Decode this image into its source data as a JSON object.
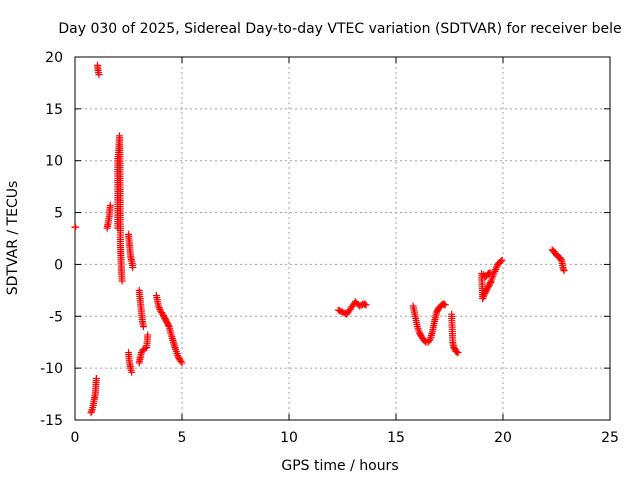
{
  "chart_data": {
    "type": "scatter",
    "title": "Day 030 of 2025, Sidereal Day-to-day VTEC variation (SDTVAR) for receiver bele",
    "xlabel": "GPS time / hours",
    "ylabel": "SDTVAR / TECUs",
    "xlim": [
      0,
      25
    ],
    "ylim": [
      -15,
      20
    ],
    "xticks": [
      0,
      5,
      10,
      15,
      20,
      25
    ],
    "yticks": [
      -15,
      -10,
      -5,
      0,
      5,
      10,
      15,
      20
    ],
    "grid": true,
    "marker": "+",
    "marker_color": "#ff0000",
    "series": [
      {
        "name": "SDTVAR",
        "segments": [
          [
            [
              0.0,
              3.6
            ],
            [
              0.03,
              3.6
            ]
          ],
          [
            [
              0.75,
              -14.3
            ],
            [
              0.8,
              -14.0
            ],
            [
              0.85,
              -13.6
            ],
            [
              0.9,
              -13.0
            ],
            [
              0.95,
              -12.5
            ],
            [
              1.0,
              -11.0
            ]
          ],
          [
            [
              1.05,
              19.2
            ],
            [
              1.08,
              18.7
            ],
            [
              1.12,
              18.3
            ]
          ],
          [
            [
              1.5,
              3.5
            ],
            [
              1.55,
              4.0
            ],
            [
              1.6,
              4.6
            ],
            [
              1.65,
              5.7
            ]
          ],
          [
            [
              2.0,
              3.5
            ],
            [
              2.0,
              10.2
            ],
            [
              2.03,
              10.8
            ],
            [
              2.05,
              11.2
            ],
            [
              2.08,
              12.4
            ],
            [
              2.1,
              10.8
            ],
            [
              2.12,
              2.0
            ],
            [
              2.15,
              0.5
            ],
            [
              2.18,
              -1.0
            ],
            [
              2.2,
              -1.6
            ]
          ],
          [
            [
              2.5,
              -8.5
            ],
            [
              2.55,
              -9.5
            ],
            [
              2.6,
              -10.0
            ],
            [
              2.65,
              -10.4
            ]
          ],
          [
            [
              2.5,
              2.9
            ],
            [
              2.55,
              1.8
            ],
            [
              2.6,
              0.8
            ],
            [
              2.65,
              0.3
            ],
            [
              2.7,
              -0.3
            ]
          ],
          [
            [
              3.0,
              -2.5
            ],
            [
              3.05,
              -3.5
            ],
            [
              3.1,
              -4.5
            ],
            [
              3.15,
              -5.5
            ],
            [
              3.2,
              -6.0
            ]
          ],
          [
            [
              3.0,
              -9.5
            ],
            [
              3.05,
              -9.0
            ],
            [
              3.1,
              -8.5
            ],
            [
              3.2,
              -8.2
            ],
            [
              3.35,
              -8.0
            ],
            [
              3.4,
              -6.8
            ]
          ],
          [
            [
              3.8,
              -3.0
            ],
            [
              3.9,
              -4.0
            ],
            [
              4.0,
              -4.5
            ],
            [
              4.1,
              -4.8
            ],
            [
              4.2,
              -5.2
            ],
            [
              4.3,
              -5.6
            ],
            [
              4.4,
              -6.0
            ],
            [
              4.5,
              -6.8
            ],
            [
              4.6,
              -7.5
            ],
            [
              4.7,
              -8.2
            ],
            [
              4.8,
              -8.8
            ],
            [
              4.9,
              -9.2
            ],
            [
              5.0,
              -9.5
            ]
          ],
          [
            [
              12.3,
              -4.4
            ],
            [
              12.5,
              -4.6
            ],
            [
              12.7,
              -4.8
            ],
            [
              12.9,
              -4.2
            ],
            [
              13.1,
              -3.6
            ],
            [
              13.3,
              -4.0
            ],
            [
              13.5,
              -3.8
            ],
            [
              13.6,
              -3.9
            ]
          ],
          [
            [
              15.8,
              -4.0
            ],
            [
              15.9,
              -5.0
            ],
            [
              16.0,
              -6.0
            ],
            [
              16.1,
              -6.6
            ],
            [
              16.2,
              -7.0
            ],
            [
              16.3,
              -7.3
            ],
            [
              16.4,
              -7.5
            ],
            [
              16.5,
              -7.5
            ],
            [
              16.6,
              -7.2
            ],
            [
              16.7,
              -6.5
            ],
            [
              16.8,
              -5.5
            ],
            [
              16.9,
              -4.6
            ],
            [
              17.0,
              -4.2
            ],
            [
              17.1,
              -4.0
            ],
            [
              17.2,
              -3.8
            ],
            [
              17.3,
              -3.9
            ]
          ],
          [
            [
              17.6,
              -4.8
            ],
            [
              17.65,
              -7.5
            ],
            [
              17.7,
              -8.0
            ],
            [
              17.8,
              -8.4
            ],
            [
              17.9,
              -8.5
            ]
          ],
          [
            [
              19.0,
              -0.9
            ],
            [
              19.05,
              -3.3
            ],
            [
              19.15,
              -2.8
            ],
            [
              19.25,
              -2.4
            ],
            [
              19.35,
              -2.0
            ],
            [
              19.45,
              -1.6
            ],
            [
              19.55,
              -1.0
            ],
            [
              19.65,
              -0.5
            ],
            [
              19.75,
              0.0
            ],
            [
              19.85,
              0.2
            ],
            [
              19.95,
              0.4
            ]
          ],
          [
            [
              19.1,
              -1.0
            ],
            [
              19.2,
              -1.2
            ],
            [
              19.3,
              -0.9
            ],
            [
              19.4,
              -0.8
            ]
          ],
          [
            [
              22.3,
              1.4
            ],
            [
              22.4,
              1.2
            ],
            [
              22.5,
              0.9
            ],
            [
              22.6,
              0.7
            ],
            [
              22.7,
              0.6
            ],
            [
              22.75,
              0.3
            ],
            [
              22.8,
              -0.3
            ],
            [
              22.85,
              -0.6
            ]
          ]
        ]
      }
    ]
  }
}
